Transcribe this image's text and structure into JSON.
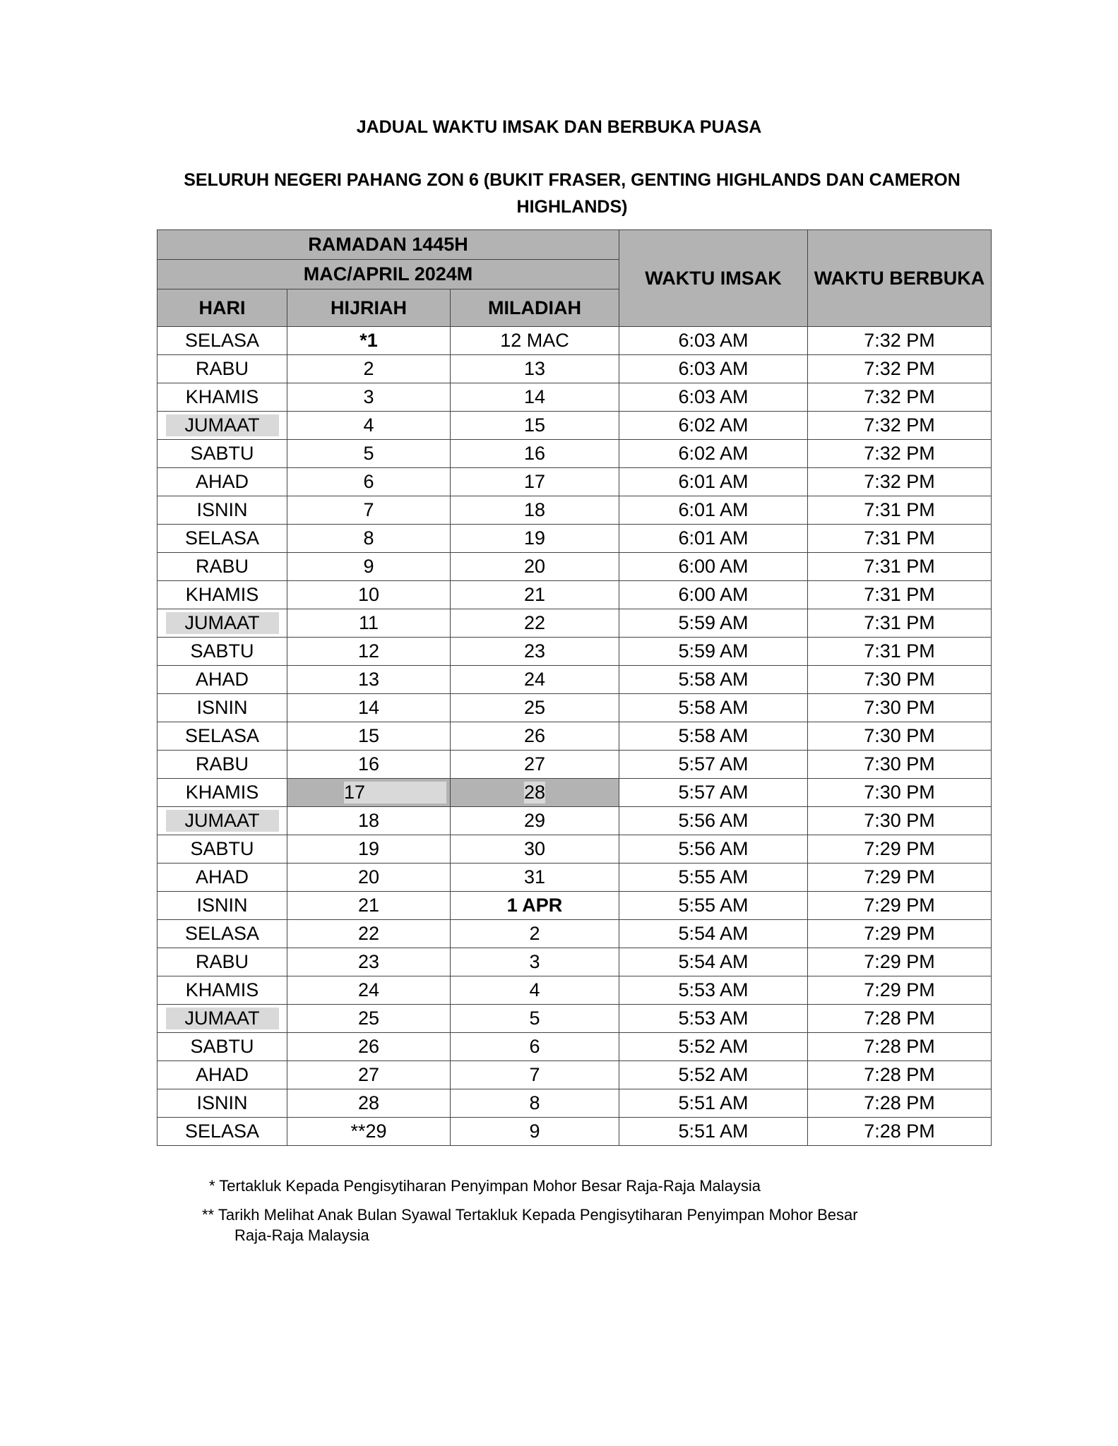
{
  "title": "JADUAL WAKTU IMSAK DAN BERBUKA PUASA",
  "subtitle": "SELURUH NEGERI PAHANG ZON 6 (BUKIT FRASER, GENTING HIGHLANDS DAN CAMERON HIGHLANDS)",
  "header": {
    "ramadan": "RAMADAN 1445H",
    "month": "MAC/APRIL 2024M",
    "hari": "HARI",
    "hijriah": "HIJRIAH",
    "miladiah": "MILADIAH",
    "imsak": "WAKTU IMSAK",
    "berbuka": "WAKTU BERBUKA"
  },
  "rows": [
    [
      "SELASA",
      "*1",
      "12 MAC",
      "6:03 AM",
      "7:32 PM"
    ],
    [
      "RABU",
      "2",
      "13",
      "6:03 AM",
      "7:32 PM"
    ],
    [
      "KHAMIS",
      "3",
      "14",
      "6:03 AM",
      "7:32 PM"
    ],
    [
      "JUMAAT",
      "4",
      "15",
      "6:02 AM",
      "7:32 PM"
    ],
    [
      "SABTU",
      "5",
      "16",
      "6:02 AM",
      "7:32 PM"
    ],
    [
      "AHAD",
      "6",
      "17",
      "6:01 AM",
      "7:32 PM"
    ],
    [
      "ISNIN",
      "7",
      "18",
      "6:01 AM",
      "7:31 PM"
    ],
    [
      "SELASA",
      "8",
      "19",
      "6:01 AM",
      "7:31 PM"
    ],
    [
      "RABU",
      "9",
      "20",
      "6:00 AM",
      "7:31 PM"
    ],
    [
      "KHAMIS",
      "10",
      "21",
      "6:00 AM",
      "7:31 PM"
    ],
    [
      "JUMAAT",
      "11",
      "22",
      "5:59 AM",
      "7:31 PM"
    ],
    [
      "SABTU",
      "12",
      "23",
      "5:59 AM",
      "7:31 PM"
    ],
    [
      "AHAD",
      "13",
      "24",
      "5:58 AM",
      "7:30 PM"
    ],
    [
      "ISNIN",
      "14",
      "25",
      "5:58 AM",
      "7:30 PM"
    ],
    [
      "SELASA",
      "15",
      "26",
      "5:58 AM",
      "7:30 PM"
    ],
    [
      "RABU",
      "16",
      "27",
      "5:57 AM",
      "7:30 PM"
    ],
    [
      "KHAMIS",
      "17",
      "28",
      "5:57 AM",
      "7:30 PM"
    ],
    [
      "JUMAAT",
      "18",
      "29",
      "5:56 AM",
      "7:30 PM"
    ],
    [
      "SABTU",
      "19",
      "30",
      "5:56 AM",
      "7:29 PM"
    ],
    [
      "AHAD",
      "20",
      "31",
      "5:55 AM",
      "7:29 PM"
    ],
    [
      "ISNIN",
      "21",
      "1 APR",
      "5:55 AM",
      "7:29 PM"
    ],
    [
      "SELASA",
      "22",
      "2",
      "5:54 AM",
      "7:29 PM"
    ],
    [
      "RABU",
      "23",
      "3",
      "5:54 AM",
      "7:29 PM"
    ],
    [
      "KHAMIS",
      "24",
      "4",
      "5:53 AM",
      "7:29 PM"
    ],
    [
      "JUMAAT",
      "25",
      "5",
      "5:53 AM",
      "7:28 PM"
    ],
    [
      "SABTU",
      "26",
      "6",
      "5:52 AM",
      "7:28 PM"
    ],
    [
      "AHAD",
      "27",
      "7",
      "5:52 AM",
      "7:28 PM"
    ],
    [
      "ISNIN",
      "28",
      "8",
      "5:51 AM",
      "7:28 PM"
    ],
    [
      "SELASA",
      "**29",
      "9",
      "5:51 AM",
      "7:28 PM"
    ]
  ],
  "notes": {
    "n1": "* Tertakluk Kepada Pengisytiharan Penyimpan Mohor Besar Raja-Raja Malaysia",
    "n2a": "** Tarikh Melihat Anak Bulan Syawal Tertakluk Kepada Pengisytiharan Penyimpan Mohor Besar",
    "n2b": "Raja-Raja Malaysia"
  },
  "colors": {
    "header_bg": "#b3b3b3",
    "highlight": "#d9d9d9"
  }
}
